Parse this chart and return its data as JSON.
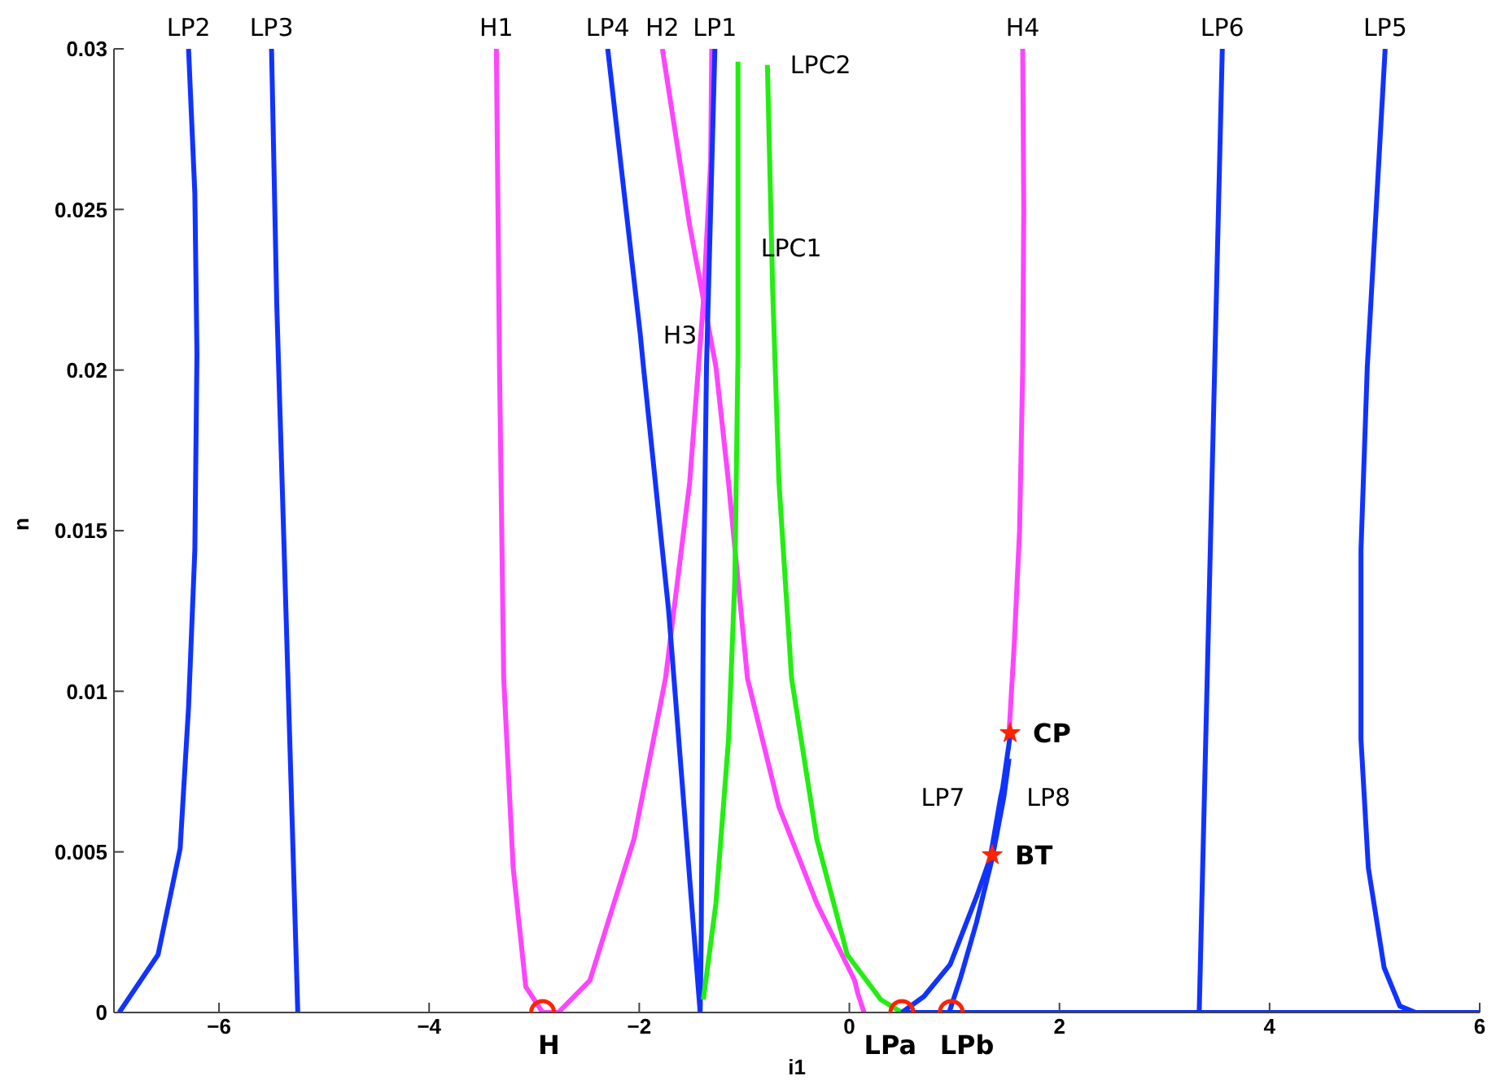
{
  "chart_data": {
    "type": "line",
    "xlabel": "i1",
    "ylabel": "n",
    "xlim": [
      -7,
      6
    ],
    "ylim": [
      0,
      0.03
    ],
    "xticks": [
      -6,
      -4,
      -2,
      0,
      2,
      4,
      6
    ],
    "yticks": [
      0,
      0.005,
      0.01,
      0.015,
      0.02,
      0.025,
      0.03
    ],
    "grid": false,
    "legend": false,
    "marker": "none",
    "line_style": "solid",
    "series": [
      {
        "color": "#1133ff",
        "x": [
          -6.95,
          -6.58,
          -6.37,
          -6.29,
          -6.23,
          -6.21,
          -6.23,
          -6.29
        ],
        "values": [
          0,
          0.0018,
          0.0051,
          0.0095,
          0.0144,
          0.0205,
          0.0255,
          0.03
        ]
      },
      {
        "color": "#1133ff",
        "x": [
          -5.5,
          -5.45,
          -5.38,
          -5.25
        ],
        "values": [
          0.03,
          0.022,
          0.0144,
          0
        ]
      },
      {
        "color": "#ff44ff",
        "x": [
          -3.36,
          -3.33,
          -3.29,
          -3.2,
          -3.08,
          -2.92,
          -2.77,
          -2.47,
          -2.05,
          -1.75,
          -1.52,
          -1.39,
          -1.32,
          -1.31
        ],
        "values": [
          0.03,
          0.0201,
          0.0104,
          0.0045,
          0.0008,
          0,
          0,
          0.001,
          0.0054,
          0.0104,
          0.0165,
          0.0221,
          0.0265,
          0.03
        ]
      },
      {
        "color": "#ff44ff",
        "x": [
          -1.78,
          -1.52,
          -1.27,
          -1.15,
          -0.97,
          -0.67,
          -0.31,
          0.05,
          0.08,
          0.14
        ],
        "values": [
          0.03,
          0.0245,
          0.0201,
          0.0165,
          0.0104,
          0.0064,
          0.0034,
          0.001,
          0.0006,
          0
        ]
      },
      {
        "color": "#ff44ff",
        "x": [
          1.52,
          1.57,
          1.62,
          1.65,
          1.66,
          1.65
        ],
        "values": [
          0.0087,
          0.0115,
          0.015,
          0.02,
          0.025,
          0.03
        ]
      },
      {
        "color": "#1133ff",
        "x": [
          -2.3,
          -1.99,
          -1.96,
          -1.72,
          -1.42,
          -1.41,
          -1.39,
          -1.36,
          -1.28
        ],
        "values": [
          0.03,
          0.0211,
          0.0201,
          0.0125,
          0,
          0.0024,
          0.0125,
          0.0201,
          0.03
        ]
      },
      {
        "color": "#22ee11",
        "x": [
          -1.39,
          -1.27,
          -1.15,
          -1.09,
          -1.06,
          -1.06,
          -1.06
        ],
        "values": [
          0.0004,
          0.0034,
          0.0085,
          0.0135,
          0.0205,
          0.0238,
          0.0296
        ]
      },
      {
        "color": "#22ee11",
        "x": [
          -0.78,
          -0.78,
          -0.73,
          -0.67,
          -0.55,
          -0.31,
          -0.02,
          0.3,
          0.5
        ],
        "values": [
          0.0295,
          0.0295,
          0.0225,
          0.0165,
          0.0104,
          0.0054,
          0.0018,
          0.0004,
          0
        ]
      },
      {
        "color": "#1133ff",
        "x": [
          0.5,
          0.71,
          0.96,
          1.21,
          1.34,
          1.44,
          1.46,
          1.53
        ],
        "values": [
          0,
          0.0005,
          0.0015,
          0.0036,
          0.0048,
          0.0067,
          0.007,
          0.0086
        ]
      },
      {
        "color": "#1133ff",
        "x": [
          0.95,
          1.06,
          1.21,
          1.36,
          1.47,
          1.52
        ],
        "values": [
          0,
          0.0011,
          0.0028,
          0.0048,
          0.0067,
          0.0079
        ]
      },
      {
        "color": "#1133ff",
        "x": [
          0.5,
          6
        ],
        "values": [
          0,
          0
        ]
      },
      {
        "color": "#1133ff",
        "x": [
          3.33,
          3.55
        ],
        "values": [
          0,
          0.03
        ]
      },
      {
        "color": "#1133ff",
        "x": [
          5.1,
          4.93,
          4.87,
          4.87,
          4.94,
          5.09,
          5.24,
          5.39
        ],
        "values": [
          0.03,
          0.0201,
          0.0144,
          0.0085,
          0.0045,
          0.0014,
          0.0002,
          0
        ]
      },
      {
        "type": "scatter",
        "marker": "circle",
        "color": "#ff2200",
        "x": [
          -2.92,
          0.5,
          0.97
        ],
        "values": [
          0,
          0,
          0
        ]
      },
      {
        "type": "scatter",
        "marker": "star",
        "color": "#ff2200",
        "x": [
          1.53,
          1.36
        ],
        "values": [
          0.0087,
          0.0049
        ]
      }
    ],
    "annotations": [
      {
        "text": "LP2",
        "x": -6.29,
        "y": 0.03
      },
      {
        "text": "LP3",
        "x": -5.5,
        "y": 0.03
      },
      {
        "text": "H1",
        "x": -3.36,
        "y": 0.03
      },
      {
        "text": "LP4",
        "x": -2.3,
        "y": 0.03
      },
      {
        "text": "H2",
        "x": -1.78,
        "y": 0.03
      },
      {
        "text": "LP1",
        "x": -1.28,
        "y": 0.03
      },
      {
        "text": "H4",
        "x": 1.65,
        "y": 0.03
      },
      {
        "text": "LP6",
        "x": 3.55,
        "y": 0.03
      },
      {
        "text": "LP5",
        "x": 5.1,
        "y": 0.03
      },
      {
        "text": "LPC2",
        "x": -0.78,
        "y": 0.0295
      },
      {
        "text": "LPC1",
        "x": -1.06,
        "y": 0.0238
      },
      {
        "text": "H3",
        "x": -1.99,
        "y": 0.0211
      },
      {
        "text": "LP7",
        "x": 1.44,
        "y": 0.0067
      },
      {
        "text": "LP8",
        "x": 1.47,
        "y": 0.0067
      },
      {
        "text": "H",
        "x": -2.86,
        "y": 0
      },
      {
        "text": "LPa",
        "x": 0.39,
        "y": 0
      },
      {
        "text": "LPb",
        "x": 1.12,
        "y": 0
      },
      {
        "text": "CP",
        "x": 1.53,
        "y": 0.0087
      },
      {
        "text": "BT",
        "x": 1.36,
        "y": 0.0049
      }
    ]
  }
}
